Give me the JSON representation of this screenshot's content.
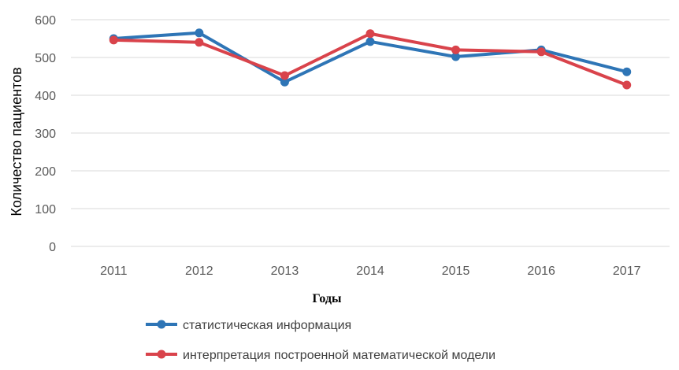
{
  "chart_data": {
    "type": "line",
    "title": "",
    "xlabel": "Годы",
    "ylabel": "Количество пациентов",
    "categories": [
      "2011",
      "2012",
      "2013",
      "2014",
      "2015",
      "2016",
      "2017"
    ],
    "ylim": [
      0,
      600
    ],
    "yticks": [
      "0",
      "100",
      "200",
      "300",
      "400",
      "500",
      "600"
    ],
    "grid": true,
    "legend_position": "bottom",
    "series": [
      {
        "name": "статистическая информация",
        "color": "#2E75B6",
        "values": [
          550,
          565,
          435,
          542,
          502,
          520,
          462
        ]
      },
      {
        "name": "интерпретация построенной математической модели",
        "color": "#D9434B",
        "values": [
          546,
          540,
          452,
          563,
          520,
          515,
          427
        ]
      }
    ]
  }
}
